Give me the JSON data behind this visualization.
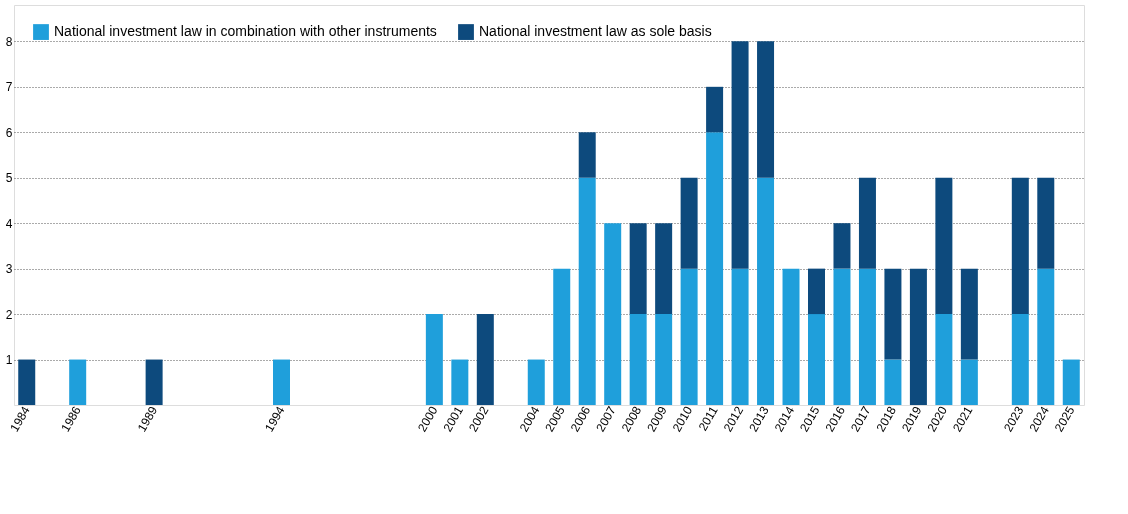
{
  "chart_data": {
    "type": "bar",
    "stacked": true,
    "categories": [
      "1984",
      null,
      "1986",
      null,
      null,
      "1989",
      null,
      null,
      null,
      null,
      "1994",
      null,
      null,
      null,
      null,
      null,
      "2000",
      "2001",
      "2002",
      null,
      "2004",
      "2005",
      "2006",
      "2007",
      "2008",
      "2009",
      "2010",
      "2011",
      "2012",
      "2013",
      "2014",
      "2015",
      "2016",
      "2017",
      "2018",
      "2019",
      "2020",
      "2021",
      null,
      "2023",
      "2024",
      "2025"
    ],
    "series": [
      {
        "name": "National investment law in combination with other instruments",
        "color": "#1f9fdb",
        "values": [
          null,
          null,
          1,
          null,
          null,
          null,
          null,
          null,
          null,
          null,
          1,
          null,
          null,
          null,
          null,
          null,
          2,
          1,
          null,
          null,
          1,
          3,
          5,
          4,
          2,
          2,
          3,
          6,
          3,
          5,
          3,
          2,
          3,
          3,
          1,
          null,
          2,
          1,
          null,
          2,
          3,
          1
        ]
      },
      {
        "name": "National investment law as sole basis",
        "color": "#0d4a7d",
        "values": [
          1,
          null,
          null,
          null,
          null,
          1,
          null,
          null,
          null,
          null,
          null,
          null,
          null,
          null,
          null,
          null,
          null,
          null,
          2,
          null,
          null,
          null,
          1,
          null,
          2,
          2,
          2,
          1,
          5,
          3,
          null,
          1,
          1,
          2,
          2,
          3,
          3,
          2,
          null,
          3,
          2,
          null
        ]
      }
    ],
    "ylim": [
      0,
      8.8
    ],
    "yticks": [
      1,
      2,
      3,
      4,
      5,
      6,
      7,
      8
    ],
    "grid": "y",
    "legend": "top left"
  }
}
